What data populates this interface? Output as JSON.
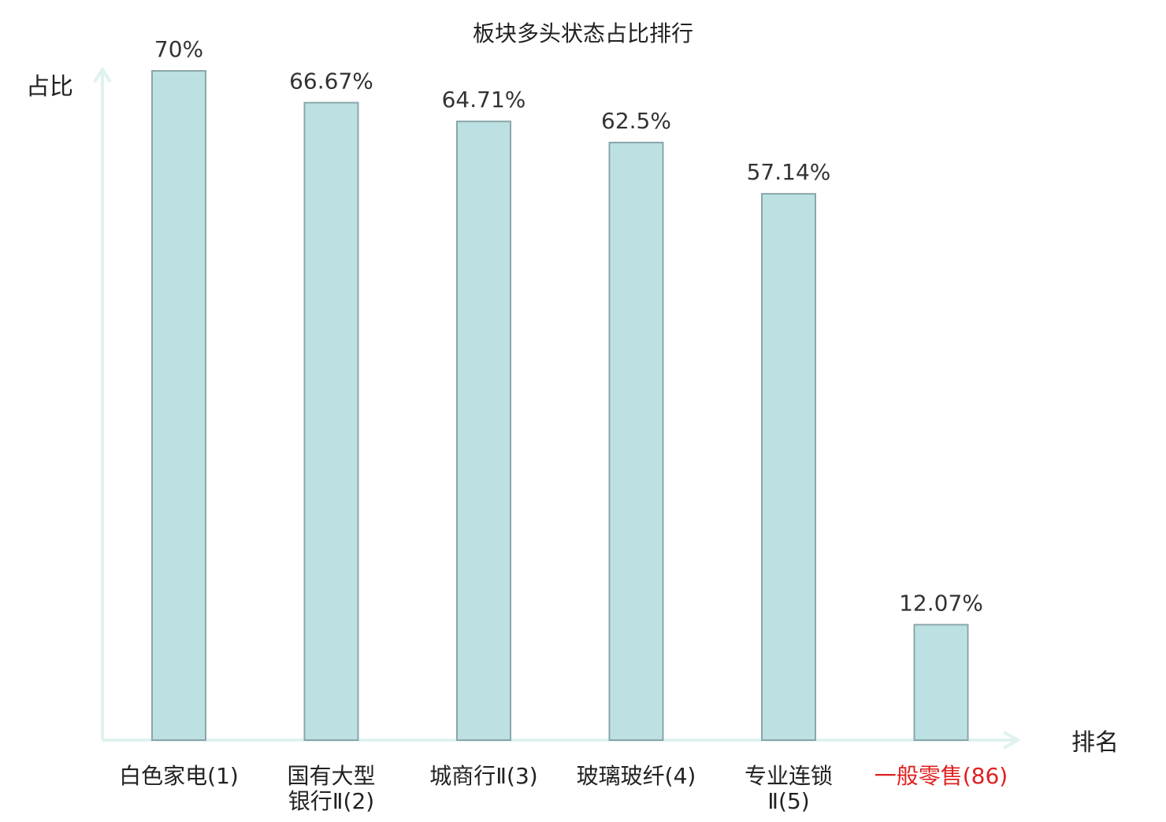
{
  "chart_data": {
    "type": "bar",
    "title": "板块多头状态占比排行",
    "ylabel": "占比",
    "xlabel": "排名",
    "ylim": [
      0,
      70
    ],
    "grid": false,
    "categories": [
      {
        "name_lines": [
          "白色家电(1)"
        ],
        "highlight": false
      },
      {
        "name_lines": [
          "国有大型",
          "银行Ⅱ(2)"
        ],
        "highlight": false
      },
      {
        "name_lines": [
          "城商行Ⅱ(3)"
        ],
        "highlight": false
      },
      {
        "name_lines": [
          "玻璃玻纤(4)"
        ],
        "highlight": false
      },
      {
        "name_lines": [
          "专业连锁",
          "Ⅱ(5)"
        ],
        "highlight": false
      },
      {
        "name_lines": [
          "一般零售(86)"
        ],
        "highlight": true
      }
    ],
    "values": [
      70,
      66.67,
      64.71,
      62.5,
      57.14,
      12.07
    ],
    "data_labels": [
      "70%",
      "66.67%",
      "64.71%",
      "62.5%",
      "57.14%",
      "12.07%"
    ],
    "colors": {
      "bar_fill": "#bde1e3",
      "bar_stroke": "#8aa6a8",
      "axis": "#e0f2ef",
      "label_text": "#333333",
      "tick_text": "#222222",
      "highlight_text": "#e02020"
    }
  }
}
